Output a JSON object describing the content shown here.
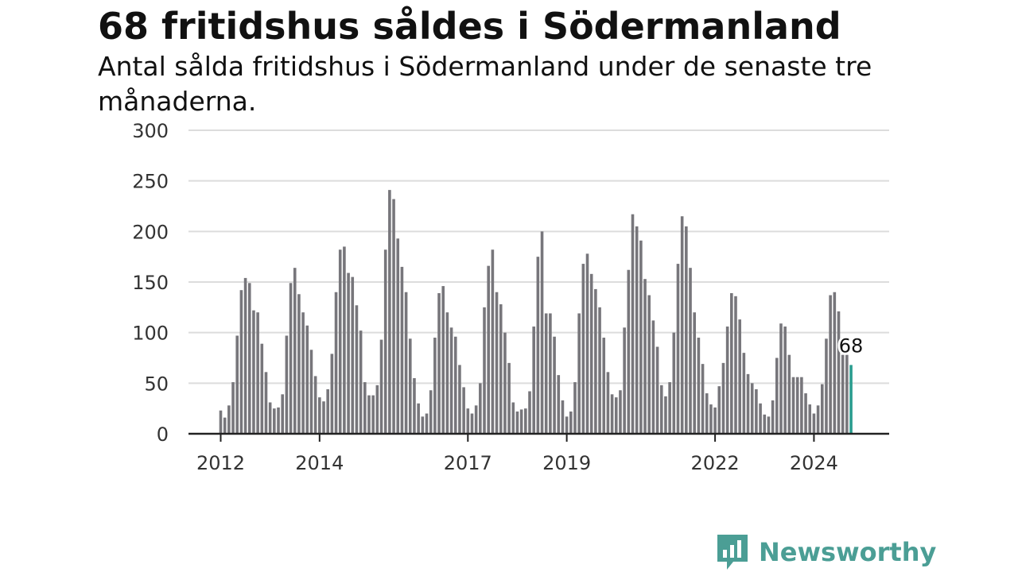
{
  "title": "68 fritidshus såldes i Södermanland",
  "subtitle": "Antal sålda fritidshus i Södermanland under de senaste tre månaderna.",
  "brand": {
    "name": "Newsworthy",
    "icon": "bar-chart-speech-icon",
    "color": "#4b9e95"
  },
  "chart_data": {
    "type": "bar",
    "title": "68 fritidshus såldes i Södermanland",
    "subtitle": "Antal sålda fritidshus i Södermanland under de senaste tre månaderna.",
    "xlabel": "",
    "ylabel": "",
    "ylim": [
      0,
      300
    ],
    "yticks": [
      0,
      50,
      100,
      150,
      200,
      250,
      300
    ],
    "grid": true,
    "bar_color": "#77767b",
    "highlight_color": "#2a9d8f",
    "start": "2012-01",
    "xtick_labels": [
      {
        "label": "2012",
        "index": 0
      },
      {
        "label": "2014",
        "index": 24
      },
      {
        "label": "2017",
        "index": 60
      },
      {
        "label": "2019",
        "index": 84
      },
      {
        "label": "2022",
        "index": 120
      },
      {
        "label": "2024",
        "index": 144
      }
    ],
    "values": [
      23,
      16,
      28,
      51,
      97,
      142,
      154,
      149,
      122,
      120,
      89,
      61,
      31,
      25,
      26,
      39,
      97,
      149,
      164,
      138,
      120,
      107,
      83,
      57,
      36,
      32,
      44,
      79,
      140,
      182,
      185,
      159,
      155,
      127,
      102,
      51,
      38,
      38,
      48,
      93,
      182,
      241,
      232,
      193,
      165,
      140,
      94,
      55,
      30,
      17,
      20,
      43,
      95,
      139,
      146,
      120,
      105,
      96,
      68,
      46,
      25,
      20,
      28,
      50,
      125,
      166,
      182,
      140,
      128,
      100,
      70,
      31,
      22,
      24,
      25,
      42,
      106,
      175,
      200,
      119,
      119,
      96,
      58,
      33,
      17,
      22,
      51,
      119,
      168,
      178,
      158,
      143,
      125,
      95,
      61,
      39,
      36,
      43,
      105,
      162,
      217,
      205,
      191,
      153,
      137,
      112,
      86,
      48,
      37,
      51,
      100,
      168,
      215,
      205,
      164,
      120,
      95,
      69,
      40,
      29,
      26,
      47,
      70,
      106,
      139,
      136,
      113,
      80,
      59,
      50,
      44,
      30,
      19,
      17,
      33,
      75,
      109,
      106,
      78,
      56,
      56,
      56,
      40,
      29,
      20,
      28,
      49,
      94,
      137,
      140,
      121,
      78,
      78,
      68
    ],
    "last_value_label": "68"
  }
}
